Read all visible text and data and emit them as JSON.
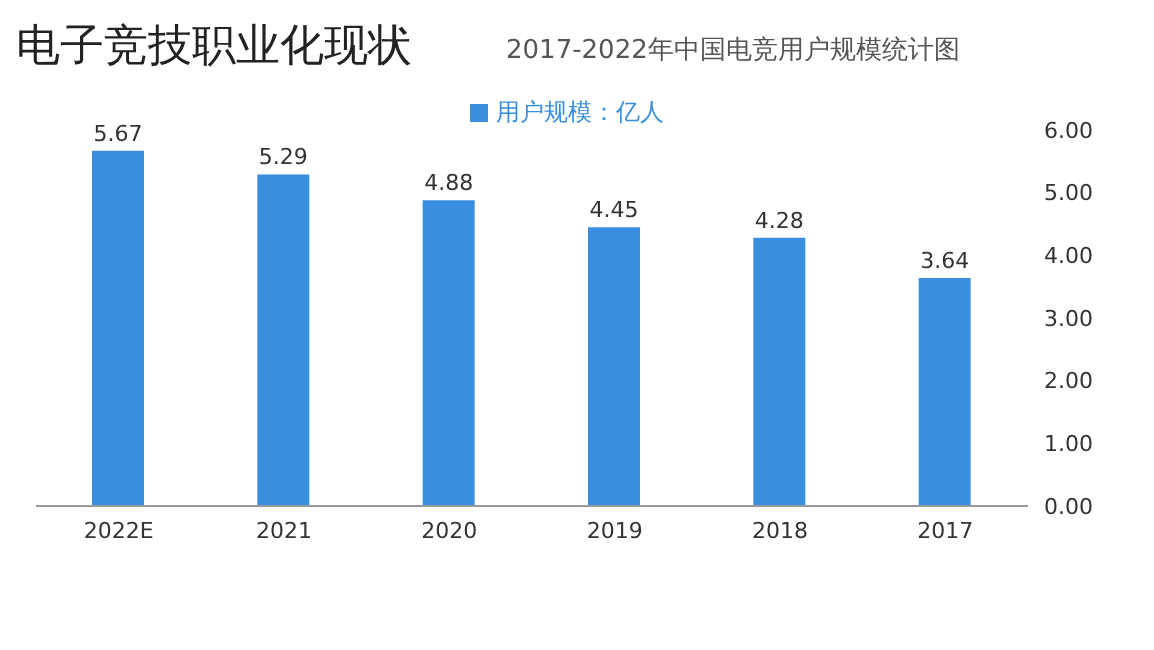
{
  "chart_data": {
    "type": "bar",
    "title": "电子竞技职业化现状",
    "subtitle": "2017-2022年中国电竞用户规模统计图",
    "categories": [
      "2022E",
      "2021",
      "2020",
      "2019",
      "2018",
      "2017"
    ],
    "series": [
      {
        "name": "用户规模：亿人",
        "color": "#3a8ee0",
        "values": [
          5.67,
          5.29,
          4.88,
          4.45,
          4.28,
          3.64
        ]
      }
    ],
    "ylim": [
      0,
      6
    ],
    "yticks": [
      {
        "value": 0,
        "label": "0.00"
      },
      {
        "value": 1,
        "label": "1.00"
      },
      {
        "value": 2,
        "label": "2.00"
      },
      {
        "value": 3,
        "label": "3.00"
      },
      {
        "value": 4,
        "label": "4.00"
      },
      {
        "value": 5,
        "label": "5.00"
      },
      {
        "value": 6,
        "label": "6.00"
      }
    ],
    "data_labels": true,
    "legend": "top",
    "grid": false
  }
}
